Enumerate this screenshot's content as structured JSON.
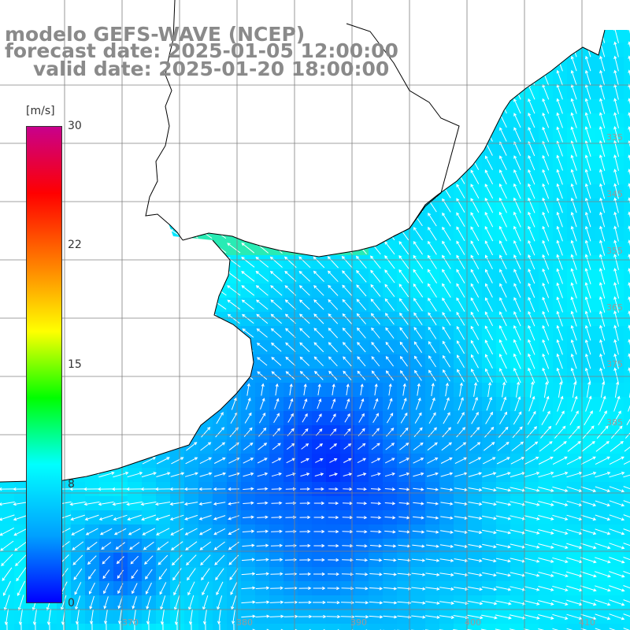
{
  "title": {
    "line1": "modelo GEFS-WAVE (NCEP)",
    "line2": "forecast date: 2025-01-05 12:00:00",
    "line3": "valid date: 2025-01-20 18:00:00"
  },
  "colorbar": {
    "unit": "[m/s]",
    "min": 0,
    "max": 30,
    "ticks": [
      "30",
      "22",
      "15",
      "8",
      "0"
    ],
    "tick_values": [
      30,
      22,
      15,
      8,
      0
    ],
    "colors": [
      "#0000ff",
      "#00a0ff",
      "#00ffff",
      "#00ff00",
      "#ffff00",
      "#ff8000",
      "#ff0000",
      "#c8008c"
    ]
  },
  "map": {
    "field": "wind speed and direction",
    "land_color": "#ffffff",
    "grid_color": "#808080",
    "coast_color": "#000000",
    "right_edge_labels": [
      "335",
      "345",
      "355",
      "365",
      "375",
      "385"
    ],
    "bottom_edge_labels": [
      "370",
      "380",
      "390",
      "400",
      "410"
    ]
  }
}
